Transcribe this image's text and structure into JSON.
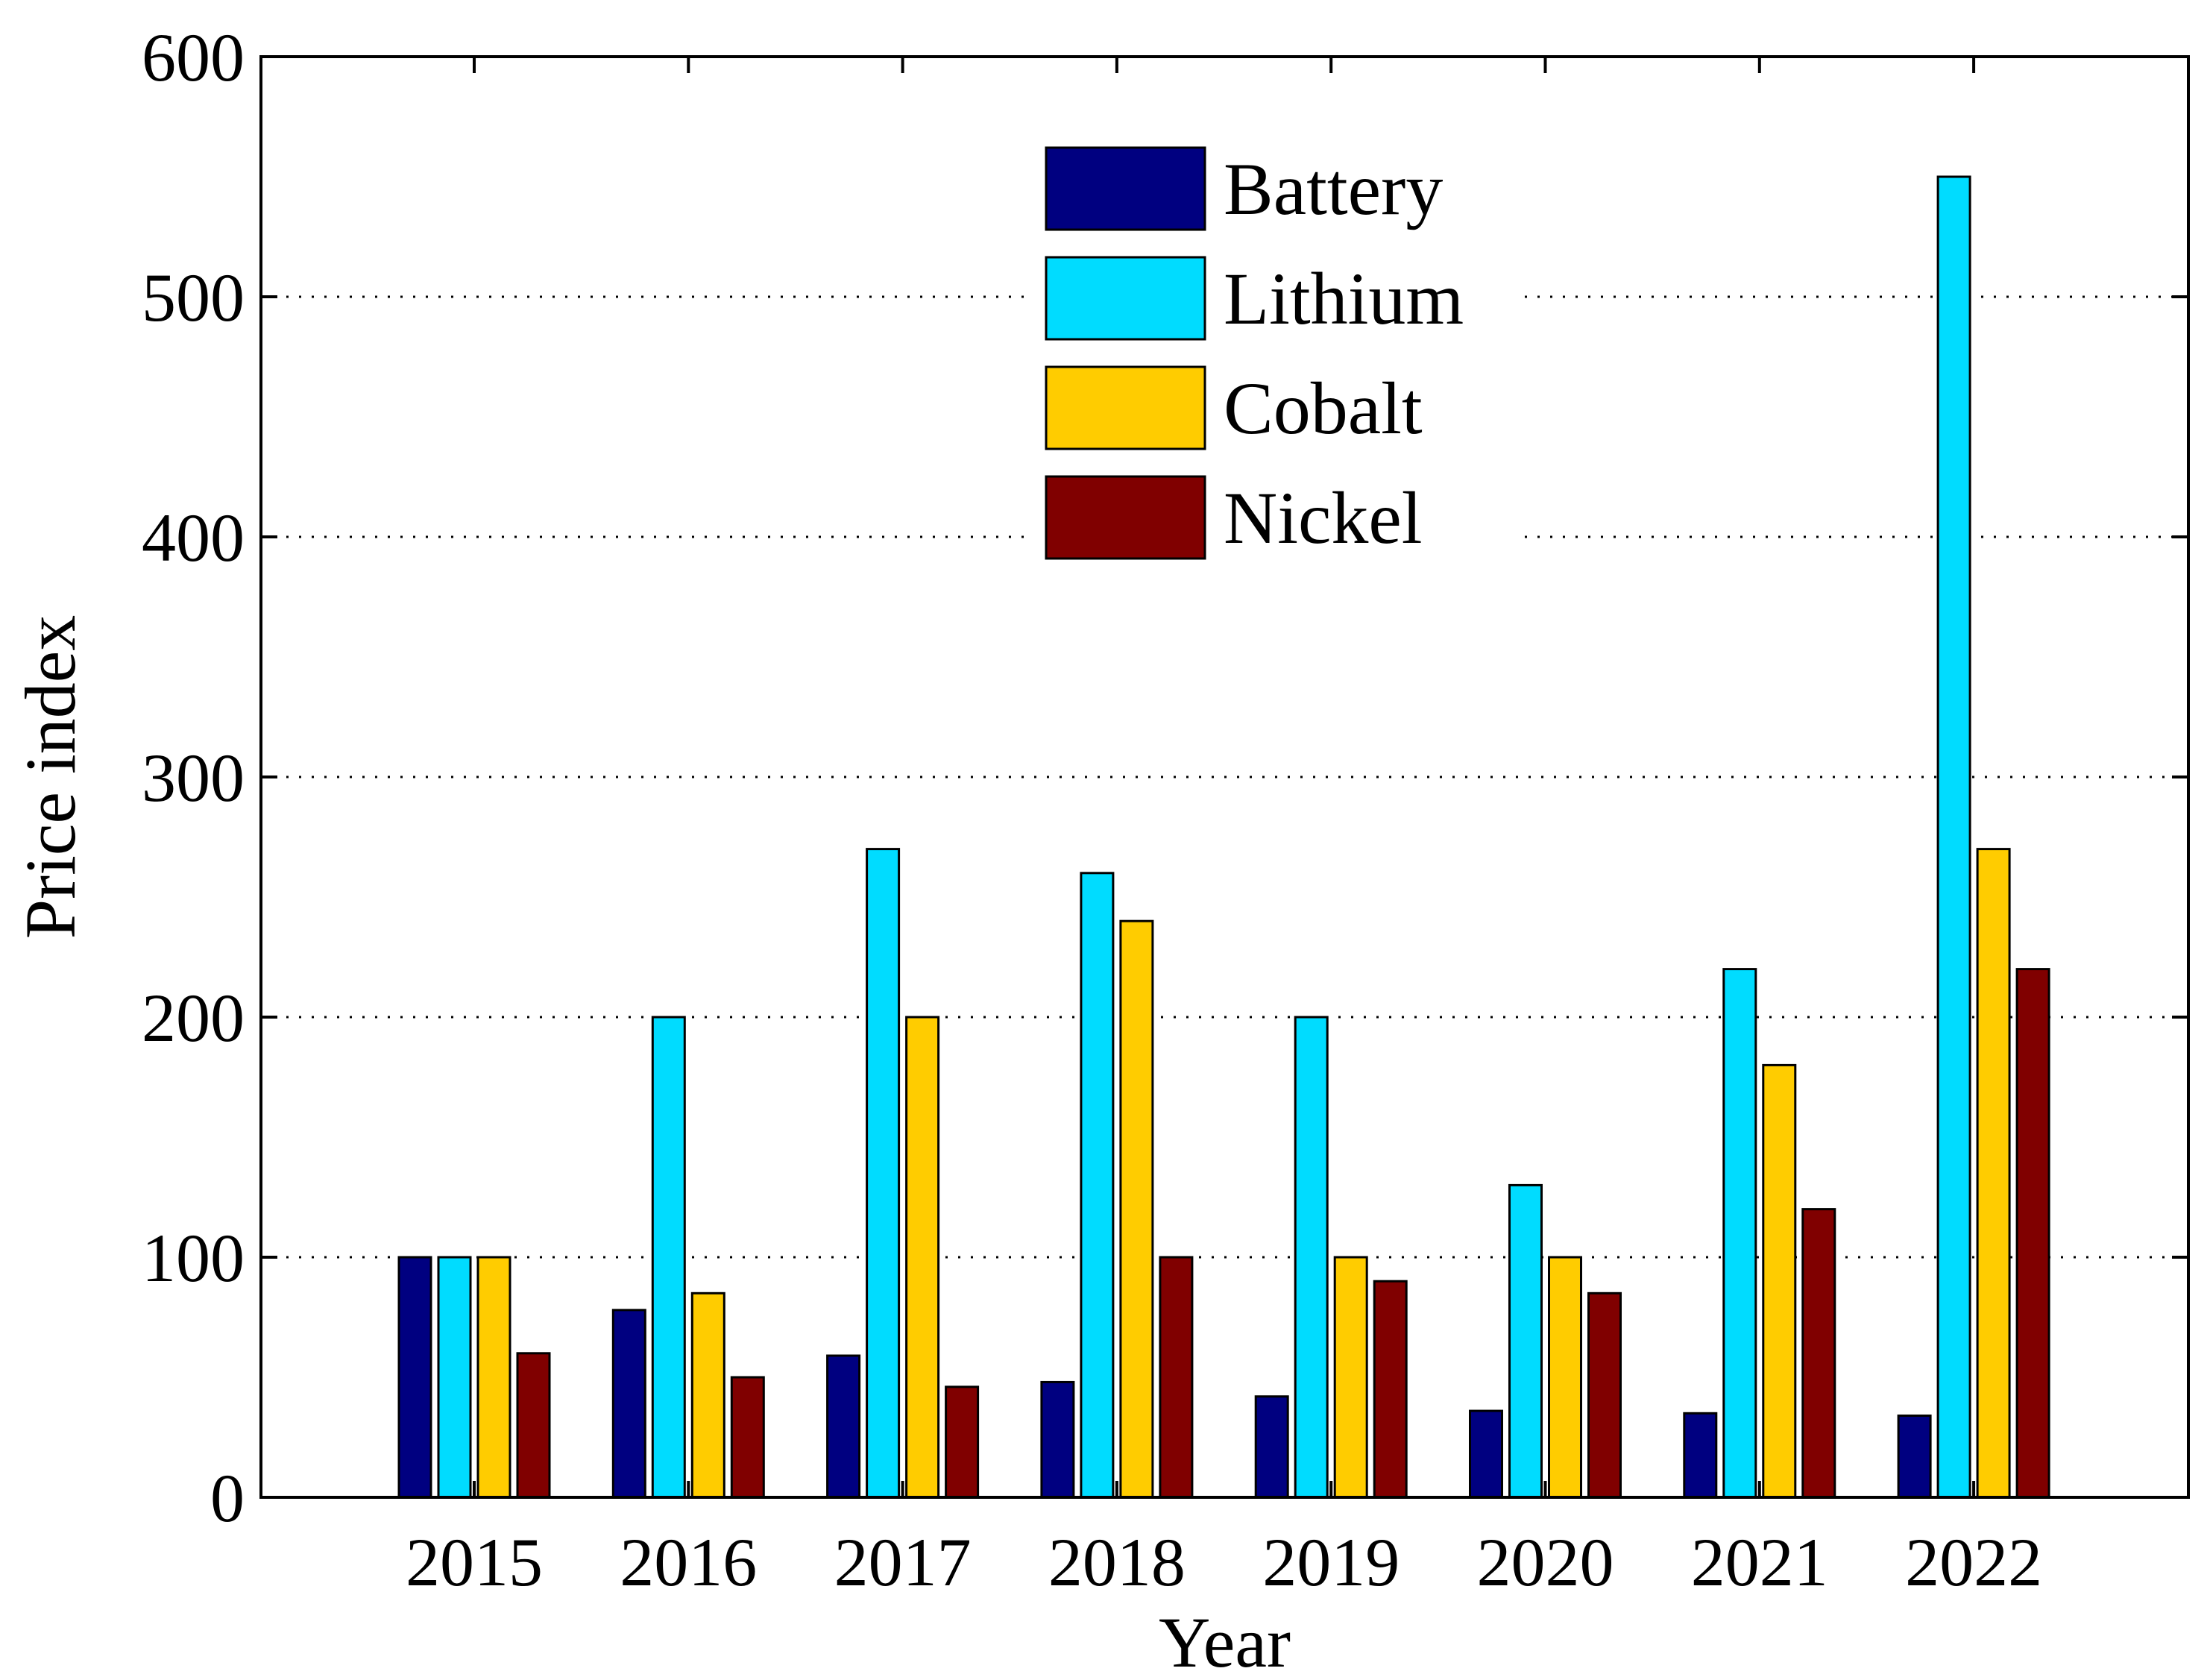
{
  "chart_data": {
    "type": "bar",
    "title": "",
    "xlabel": "Year",
    "ylabel": "Price index",
    "categories": [
      "2015",
      "2016",
      "2017",
      "2018",
      "2019",
      "2020",
      "2021",
      "2022"
    ],
    "ylim": [
      0,
      600
    ],
    "yticks": [
      "0",
      "100",
      "200",
      "300",
      "400",
      "500",
      "600"
    ],
    "ytick_values": [
      0,
      100,
      200,
      300,
      400,
      500,
      600
    ],
    "grid": "horizontal dotted",
    "legend_position": "top-center",
    "series": [
      {
        "name": "Battery",
        "color": "#000080",
        "values": [
          100,
          78,
          59,
          48,
          42,
          36,
          35,
          34
        ]
      },
      {
        "name": "Lithium",
        "color": "#00dcff",
        "values": [
          100,
          200,
          270,
          260,
          200,
          130,
          220,
          550
        ]
      },
      {
        "name": "Cobalt",
        "color": "#ffcc00",
        "values": [
          100,
          85,
          200,
          240,
          100,
          100,
          180,
          270
        ]
      },
      {
        "name": "Nickel",
        "color": "#800000",
        "values": [
          60,
          50,
          46,
          100,
          90,
          85,
          120,
          220
        ]
      }
    ]
  }
}
